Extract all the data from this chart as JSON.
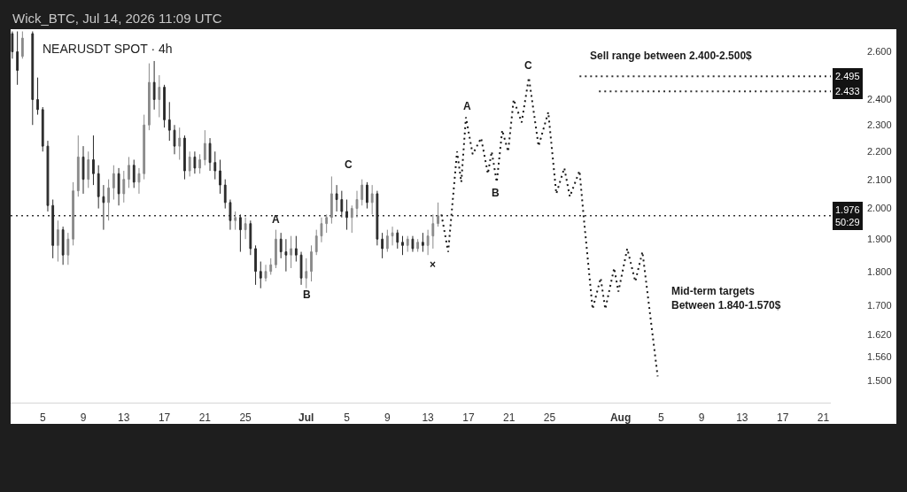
{
  "chart_data": {
    "type": "candlestick",
    "title": "NEARUSDT SPOT · 4h",
    "log": true,
    "xlim": [
      "2026-06-01T20:00",
      "2026-08-21T18:00"
    ],
    "xticks": [
      {
        "value": "2026-06-05",
        "label": "5"
      },
      {
        "value": "2026-06-09",
        "label": "9"
      },
      {
        "value": "2026-06-13",
        "label": "13"
      },
      {
        "value": "2026-06-17",
        "label": "17"
      },
      {
        "value": "2026-06-21",
        "label": "21"
      },
      {
        "value": "2026-06-25",
        "label": "25"
      },
      {
        "value": "2026-07-01",
        "label": "Jul"
      },
      {
        "value": "2026-07-05",
        "label": "5"
      },
      {
        "value": "2026-07-09",
        "label": "9"
      },
      {
        "value": "2026-07-13",
        "label": "13"
      },
      {
        "value": "2026-07-17",
        "label": "17"
      },
      {
        "value": "2026-07-21",
        "label": "21"
      },
      {
        "value": "2026-07-25",
        "label": "25"
      },
      {
        "value": "2026-08-01",
        "label": "Aug"
      },
      {
        "value": "2026-08-05",
        "label": "5"
      },
      {
        "value": "2026-08-09",
        "label": "9"
      },
      {
        "value": "2026-08-13",
        "label": "13"
      },
      {
        "value": "2026-08-17",
        "label": "17"
      },
      {
        "value": "2026-08-21",
        "label": "21"
      }
    ],
    "ylim": [
      1.445,
      2.7
    ],
    "yticks": [
      {
        "value": 2.6,
        "label": "2.600"
      },
      {
        "value": 2.4,
        "label": "2.400"
      },
      {
        "value": 2.3,
        "label": "2.300"
      },
      {
        "value": 2.2,
        "label": "2.200"
      },
      {
        "value": 2.1,
        "label": "2.100"
      },
      {
        "value": 2.0,
        "label": "2.000"
      },
      {
        "value": 1.9,
        "label": "1.900"
      },
      {
        "value": 1.8,
        "label": "1.800"
      },
      {
        "value": 1.7,
        "label": "1.700"
      },
      {
        "value": 1.62,
        "label": "1.620"
      },
      {
        "value": 1.56,
        "label": "1.560"
      },
      {
        "value": 1.5,
        "label": "1.500"
      }
    ],
    "x": [
      "2026-06-02T00:00",
      "2026-06-02T12:00",
      "2026-06-03T00:00",
      "2026-06-04T00:00",
      "2026-06-04T12:00",
      "2026-06-05T00:00",
      "2026-06-05T12:00",
      "2026-06-06T00:00",
      "2026-06-06T12:00",
      "2026-06-07T00:00",
      "2026-06-07T12:00",
      "2026-06-08T00:00",
      "2026-06-08T12:00",
      "2026-06-09T00:00",
      "2026-06-09T12:00",
      "2026-06-10T00:00",
      "2026-06-10T12:00",
      "2026-06-11T00:00",
      "2026-06-11T12:00",
      "2026-06-12T00:00",
      "2026-06-12T12:00",
      "2026-06-13T00:00",
      "2026-06-13T12:00",
      "2026-06-14T00:00",
      "2026-06-14T12:00",
      "2026-06-15T00:00",
      "2026-06-15T12:00",
      "2026-06-16T00:00",
      "2026-06-16T12:00",
      "2026-06-17T00:00",
      "2026-06-17T12:00",
      "2026-06-18T00:00",
      "2026-06-18T12:00",
      "2026-06-19T00:00",
      "2026-06-19T12:00",
      "2026-06-20T00:00",
      "2026-06-20T12:00",
      "2026-06-21T00:00",
      "2026-06-21T12:00",
      "2026-06-22T00:00",
      "2026-06-22T12:00",
      "2026-06-23T00:00",
      "2026-06-23T12:00",
      "2026-06-24T00:00",
      "2026-06-24T12:00",
      "2026-06-25T00:00",
      "2026-06-25T12:00",
      "2026-06-26T00:00",
      "2026-06-26T12:00",
      "2026-06-27T00:00",
      "2026-06-27T12:00",
      "2026-06-28T00:00",
      "2026-06-28T12:00",
      "2026-06-29T00:00",
      "2026-06-29T12:00",
      "2026-06-30T00:00",
      "2026-06-30T12:00",
      "2026-07-01T00:00",
      "2026-07-01T12:00",
      "2026-07-02T00:00",
      "2026-07-02T12:00",
      "2026-07-03T00:00",
      "2026-07-03T12:00",
      "2026-07-04T00:00",
      "2026-07-04T12:00",
      "2026-07-05T00:00",
      "2026-07-05T12:00",
      "2026-07-06T00:00",
      "2026-07-06T12:00",
      "2026-07-07T00:00",
      "2026-07-07T12:00",
      "2026-07-08T00:00",
      "2026-07-08T12:00",
      "2026-07-09T00:00",
      "2026-07-09T12:00",
      "2026-07-10T00:00",
      "2026-07-10T12:00",
      "2026-07-11T00:00",
      "2026-07-11T12:00",
      "2026-07-12T00:00",
      "2026-07-12T12:00",
      "2026-07-13T00:00",
      "2026-07-13T12:00",
      "2026-07-14T00:00"
    ],
    "ohlc": [
      [
        2.68,
        2.69,
        2.57,
        2.6
      ],
      [
        2.6,
        2.69,
        2.46,
        2.52
      ],
      [
        2.58,
        2.69,
        2.57,
        2.66
      ],
      [
        2.68,
        2.69,
        2.3,
        2.4
      ],
      [
        2.4,
        2.49,
        2.34,
        2.36
      ],
      [
        2.36,
        2.37,
        2.2,
        2.22
      ],
      [
        2.22,
        2.24,
        1.99,
        2.01
      ],
      [
        2.01,
        2.03,
        1.84,
        1.88
      ],
      [
        1.88,
        1.96,
        1.83,
        1.93
      ],
      [
        1.93,
        1.94,
        1.82,
        1.85
      ],
      [
        1.85,
        1.92,
        1.82,
        1.9
      ],
      [
        1.9,
        2.09,
        1.88,
        2.06
      ],
      [
        2.06,
        2.26,
        2.04,
        2.18
      ],
      [
        2.18,
        2.22,
        2.05,
        2.1
      ],
      [
        2.1,
        2.2,
        2.07,
        2.17
      ],
      [
        2.17,
        2.26,
        2.08,
        2.12
      ],
      [
        2.12,
        2.15,
        2.0,
        2.04
      ],
      [
        2.04,
        2.08,
        1.93,
        2.02
      ],
      [
        2.02,
        2.1,
        1.96,
        2.07
      ],
      [
        2.07,
        2.15,
        2.03,
        2.12
      ],
      [
        2.12,
        2.14,
        2.01,
        2.05
      ],
      [
        2.05,
        2.13,
        2.02,
        2.1
      ],
      [
        2.1,
        2.18,
        2.07,
        2.15
      ],
      [
        2.15,
        2.17,
        2.07,
        2.09
      ],
      [
        2.09,
        2.14,
        2.05,
        2.12
      ],
      [
        2.12,
        2.34,
        2.1,
        2.3
      ],
      [
        2.3,
        2.55,
        2.28,
        2.47
      ],
      [
        2.47,
        2.56,
        2.36,
        2.4
      ],
      [
        2.4,
        2.5,
        2.33,
        2.45
      ],
      [
        2.45,
        2.46,
        2.29,
        2.32
      ],
      [
        2.32,
        2.39,
        2.24,
        2.28
      ],
      [
        2.28,
        2.3,
        2.19,
        2.22
      ],
      [
        2.22,
        2.29,
        2.17,
        2.25
      ],
      [
        2.25,
        2.26,
        2.1,
        2.13
      ],
      [
        2.13,
        2.2,
        2.11,
        2.18
      ],
      [
        2.18,
        2.2,
        2.12,
        2.14
      ],
      [
        2.14,
        2.19,
        2.12,
        2.17
      ],
      [
        2.17,
        2.28,
        2.15,
        2.23
      ],
      [
        2.23,
        2.25,
        2.13,
        2.16
      ],
      [
        2.16,
        2.2,
        2.1,
        2.13
      ],
      [
        2.13,
        2.17,
        2.05,
        2.08
      ],
      [
        2.08,
        2.1,
        2.0,
        2.02
      ],
      [
        2.02,
        2.03,
        1.93,
        1.96
      ],
      [
        1.96,
        1.99,
        1.93,
        1.97
      ],
      [
        1.97,
        1.98,
        1.86,
        1.93
      ],
      [
        1.93,
        1.97,
        1.9,
        1.95
      ],
      [
        1.95,
        1.96,
        1.85,
        1.87
      ],
      [
        1.87,
        1.88,
        1.76,
        1.8
      ],
      [
        1.8,
        1.83,
        1.75,
        1.78
      ],
      [
        1.78,
        1.82,
        1.77,
        1.8
      ],
      [
        1.8,
        1.84,
        1.79,
        1.82
      ],
      [
        1.82,
        1.93,
        1.81,
        1.9
      ],
      [
        1.9,
        1.92,
        1.84,
        1.86
      ],
      [
        1.86,
        1.9,
        1.8,
        1.85
      ],
      [
        1.85,
        1.91,
        1.81,
        1.87
      ],
      [
        1.87,
        1.91,
        1.83,
        1.85
      ],
      [
        1.85,
        1.86,
        1.76,
        1.78
      ],
      [
        1.78,
        1.84,
        1.75,
        1.8
      ],
      [
        1.8,
        1.88,
        1.77,
        1.86
      ],
      [
        1.86,
        1.93,
        1.85,
        1.91
      ],
      [
        1.91,
        1.97,
        1.89,
        1.95
      ],
      [
        1.95,
        1.98,
        1.92,
        1.97
      ],
      [
        1.97,
        2.11,
        1.95,
        2.05
      ],
      [
        2.05,
        2.08,
        1.99,
        2.03
      ],
      [
        2.03,
        2.06,
        1.97,
        1.99
      ],
      [
        1.99,
        2.03,
        1.93,
        1.97
      ],
      [
        1.97,
        2.01,
        1.92,
        2.0
      ],
      [
        2.0,
        2.06,
        1.97,
        2.03
      ],
      [
        2.03,
        2.1,
        2.01,
        2.08
      ],
      [
        2.08,
        2.09,
        2.0,
        2.02
      ],
      [
        2.02,
        2.08,
        1.98,
        2.05
      ],
      [
        2.05,
        2.06,
        1.88,
        1.9
      ],
      [
        1.9,
        1.92,
        1.84,
        1.87
      ],
      [
        1.87,
        1.93,
        1.86,
        1.91
      ],
      [
        1.91,
        1.94,
        1.88,
        1.92
      ],
      [
        1.92,
        1.93,
        1.87,
        1.89
      ],
      [
        1.89,
        1.91,
        1.85,
        1.88
      ],
      [
        1.88,
        1.91,
        1.86,
        1.9
      ],
      [
        1.9,
        1.91,
        1.86,
        1.87
      ],
      [
        1.87,
        1.9,
        1.86,
        1.89
      ],
      [
        1.89,
        1.92,
        1.86,
        1.88
      ],
      [
        1.88,
        1.93,
        1.85,
        1.91
      ],
      [
        1.91,
        1.98,
        1.87,
        1.95
      ],
      [
        1.95,
        2.02,
        1.94,
        1.976
      ]
    ],
    "colors": [
      "#2b2b2b",
      "#2b2b2b",
      "#8a8a8a",
      "#2b2b2b",
      "#2b2b2b",
      "#2b2b2b",
      "#2b2b2b",
      "#2b2b2b",
      "#8a8a8a",
      "#2b2b2b",
      "#8a8a8a",
      "#8a8a8a",
      "#8a8a8a",
      "#2b2b2b",
      "#8a8a8a",
      "#2b2b2b",
      "#2b2b2b",
      "#2b2b2b",
      "#8a8a8a",
      "#8a8a8a",
      "#2b2b2b",
      "#8a8a8a",
      "#8a8a8a",
      "#2b2b2b",
      "#8a8a8a",
      "#8a8a8a",
      "#8a8a8a",
      "#2b2b2b",
      "#8a8a8a",
      "#2b2b2b",
      "#2b2b2b",
      "#2b2b2b",
      "#8a8a8a",
      "#2b2b2b",
      "#8a8a8a",
      "#2b2b2b",
      "#8a8a8a",
      "#8a8a8a",
      "#2b2b2b",
      "#2b2b2b",
      "#2b2b2b",
      "#2b2b2b",
      "#2b2b2b",
      "#8a8a8a",
      "#2b2b2b",
      "#8a8a8a",
      "#2b2b2b",
      "#2b2b2b",
      "#2b2b2b",
      "#8a8a8a",
      "#8a8a8a",
      "#8a8a8a",
      "#2b2b2b",
      "#2b2b2b",
      "#8a8a8a",
      "#2b2b2b",
      "#2b2b2b",
      "#8a8a8a",
      "#8a8a8a",
      "#8a8a8a",
      "#8a8a8a",
      "#8a8a8a",
      "#8a8a8a",
      "#2b2b2b",
      "#2b2b2b",
      "#2b2b2b",
      "#8a8a8a",
      "#8a8a8a",
      "#8a8a8a",
      "#2b2b2b",
      "#8a8a8a",
      "#2b2b2b",
      "#2b2b2b",
      "#8a8a8a",
      "#8a8a8a",
      "#2b2b2b",
      "#2b2b2b",
      "#8a8a8a",
      "#2b2b2b",
      "#8a8a8a",
      "#2b2b2b",
      "#8a8a8a",
      "#8a8a8a",
      "#8a8a8a"
    ],
    "series": [
      {
        "type": "line",
        "color": "#1a1a1a",
        "line_style": "dotted",
        "x": [
          "2026-07-14T08:00",
          "2026-07-15T00:00",
          "2026-07-15T14:00",
          "2026-07-15T21:00",
          "2026-07-16T07:00",
          "2026-07-16T18:00",
          "2026-07-17T10:00",
          "2026-07-18T06:00",
          "2026-07-18T22:00",
          "2026-07-19T07:00",
          "2026-07-19T19:00",
          "2026-07-20T08:00",
          "2026-07-20T22:00",
          "2026-07-21T11:00",
          "2026-07-22T06:00",
          "2026-07-22T23:00",
          "2026-07-23T22:00",
          "2026-07-24T21:00",
          "2026-07-25T16:00",
          "2026-07-26T11:00",
          "2026-07-27T00:00",
          "2026-07-27T23:00",
          "2026-07-28T09:00",
          "2026-07-29T06:00",
          "2026-07-30T01:00",
          "2026-07-30T12:00",
          "2026-07-31T09:00",
          "2026-07-31T19:00",
          "2026-08-01T16:00",
          "2026-08-02T11:00",
          "2026-08-03T04:00",
          "2026-08-04T16:00"
        ],
        "values": [
          1.98,
          1.86,
          2.08,
          2.2,
          2.09,
          2.33,
          2.19,
          2.25,
          2.12,
          2.2,
          2.09,
          2.28,
          2.2,
          2.4,
          2.31,
          2.49,
          2.22,
          2.35,
          2.05,
          2.14,
          2.04,
          2.13,
          1.97,
          1.69,
          1.78,
          1.69,
          1.81,
          1.74,
          1.87,
          1.77,
          1.86,
          1.51
        ]
      },
      {
        "type": "line",
        "color": "#333333",
        "line_style": "dotted",
        "x": [
          "2026-07-27T23:00",
          "2026-08-21T18:00"
        ],
        "values": [
          2.495,
          2.495
        ],
        "value_labels": [
          null,
          "2.495"
        ]
      },
      {
        "type": "line",
        "color": "#333333",
        "line_style": "dotted",
        "x": [
          "2026-07-29T21:00",
          "2026-08-21T18:00"
        ],
        "values": [
          2.433,
          2.433
        ],
        "value_labels": [
          null,
          "2.433"
        ]
      }
    ],
    "ref_lines": [
      {
        "axis": "y",
        "value": 1.976,
        "label": "1.976\n50:29",
        "color": "#333333",
        "line_style": "dotted"
      }
    ],
    "annotations": [
      "Wick_BTC, Jul 14, 2026 11:09 UTC",
      "Sell range between 2.400-2.500$",
      "Mid-term targets\nBetween 1.840-1.570$",
      "A",
      "B",
      "C",
      "×",
      "A",
      "B",
      "C"
    ]
  }
}
